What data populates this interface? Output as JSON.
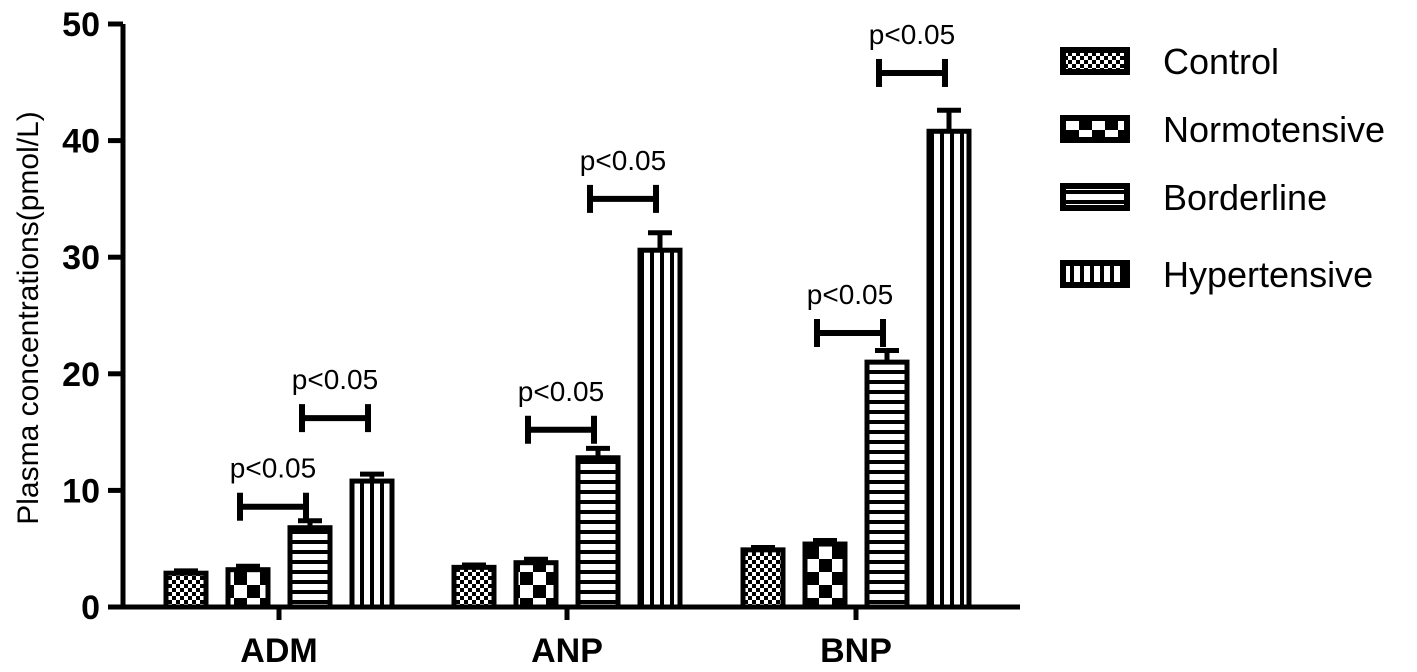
{
  "chart_data": {
    "type": "bar",
    "title": "",
    "xlabel": "",
    "ylabel": "Plasma concentrations(pmol/L)",
    "ylim": [
      0,
      50
    ],
    "yticks": [
      0,
      10,
      20,
      30,
      40,
      50
    ],
    "categories": [
      "ADM",
      "ANP",
      "BNP"
    ],
    "series": [
      {
        "name": "Control",
        "pattern": "checker-fine",
        "values": [
          2.9,
          3.4,
          4.9
        ],
        "errors": [
          0.2,
          0.2,
          0.2
        ]
      },
      {
        "name": "Normotensive",
        "pattern": "checker-large",
        "values": [
          3.2,
          3.8,
          5.4
        ],
        "errors": [
          0.3,
          0.3,
          0.3
        ]
      },
      {
        "name": "Borderline",
        "pattern": "horizontal-stripes",
        "values": [
          6.8,
          12.8,
          21.0
        ],
        "errors": [
          0.6,
          0.8,
          1.0
        ]
      },
      {
        "name": "Hypertensive",
        "pattern": "vertical-stripes",
        "values": [
          10.8,
          30.6,
          40.8
        ],
        "errors": [
          0.6,
          1.5,
          1.8
        ]
      }
    ],
    "significance": [
      {
        "category": "ADM",
        "from_series": 1,
        "to_series": 2,
        "y": 8.6,
        "label": "p<0.05"
      },
      {
        "category": "ADM",
        "from_series": 2,
        "to_series": 3,
        "y": 16.2,
        "label": "p<0.05"
      },
      {
        "category": "ANP",
        "from_series": 1,
        "to_series": 2,
        "y": 15.2,
        "label": "p<0.05"
      },
      {
        "category": "ANP",
        "from_series": 2,
        "to_series": 3,
        "y": 35.0,
        "label": "p<0.05"
      },
      {
        "category": "BNP",
        "from_series": 1,
        "to_series": 2,
        "y": 23.5,
        "label": "p<0.05"
      },
      {
        "category": "BNP",
        "from_series": 2,
        "to_series": 3,
        "y": 45.8,
        "label": "p<0.05"
      }
    ],
    "legend_position": "right",
    "grid": false
  }
}
